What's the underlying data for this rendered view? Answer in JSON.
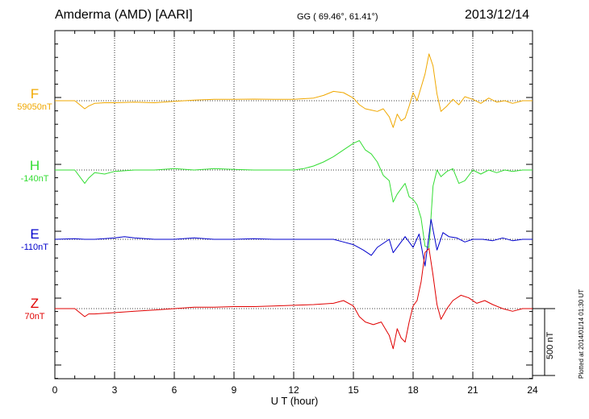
{
  "header": {
    "title": "Amderma (AMD)  [AARI]",
    "coords": "GG ( 69.46°,  61.41°)",
    "date": "2013/12/14"
  },
  "footer": {
    "plotted": "Plotted at 2014/01/14 01:30 UT"
  },
  "chart_data": {
    "type": "line",
    "title": "Amderma (AMD)  [AARI]",
    "xlabel": "U T (hour)",
    "ylabel": "",
    "xlim": [
      0,
      24
    ],
    "x_ticks": [
      0,
      3,
      6,
      9,
      12,
      15,
      18,
      21,
      24
    ],
    "grid": true,
    "scale_bar": {
      "label": "500 nT",
      "value_nT": 500
    },
    "series": [
      {
        "name": "F",
        "baseline_label": "59050nT",
        "baseline_nT": 59050,
        "color": "#f0a800",
        "x": [
          0,
          1,
          1.5,
          1.7,
          2,
          2.5,
          3,
          4,
          5,
          6,
          7,
          8,
          9,
          10,
          11,
          12,
          12.5,
          13,
          13.5,
          14,
          14.5,
          15,
          15.3,
          15.6,
          15.9,
          16.2,
          16.5,
          16.8,
          17.0,
          17.2,
          17.4,
          17.6,
          17.8,
          18.0,
          18.2,
          18.4,
          18.6,
          18.8,
          19.0,
          19.2,
          19.4,
          19.7,
          20.0,
          20.3,
          20.6,
          21.0,
          21.4,
          21.8,
          22.2,
          22.6,
          23.0,
          23.5,
          24
        ],
        "y": [
          0,
          0,
          -60,
          -40,
          -20,
          -15,
          -15,
          -10,
          -15,
          -5,
          5,
          10,
          10,
          12,
          10,
          10,
          15,
          20,
          40,
          70,
          60,
          20,
          -30,
          -60,
          -70,
          -80,
          -60,
          -120,
          -200,
          -100,
          -150,
          -130,
          -40,
          60,
          0,
          100,
          200,
          350,
          260,
          50,
          -80,
          -40,
          10,
          -30,
          30,
          10,
          -20,
          20,
          -10,
          0,
          -20,
          0,
          0
        ]
      },
      {
        "name": "H",
        "baseline_label": "-140nT",
        "baseline_nT": -140,
        "color": "#33dd33",
        "x": [
          0,
          1,
          1.5,
          1.7,
          2,
          2.5,
          3,
          4,
          5,
          6,
          7,
          8,
          9,
          10,
          11,
          12,
          12.5,
          13,
          13.5,
          14,
          14.5,
          15,
          15.3,
          15.6,
          15.9,
          16.2,
          16.5,
          16.8,
          17.0,
          17.2,
          17.4,
          17.6,
          17.8,
          18.0,
          18.2,
          18.4,
          18.6,
          18.8,
          19.0,
          19.2,
          19.4,
          19.7,
          20.0,
          20.3,
          20.6,
          21.0,
          21.4,
          21.8,
          22.2,
          22.6,
          23.0,
          23.5,
          24
        ],
        "y": [
          0,
          0,
          -100,
          -60,
          -20,
          -30,
          -10,
          0,
          0,
          10,
          0,
          10,
          5,
          0,
          0,
          0,
          10,
          30,
          60,
          100,
          150,
          200,
          220,
          150,
          120,
          60,
          -40,
          -80,
          -240,
          -180,
          -140,
          -100,
          -200,
          -220,
          -260,
          -360,
          -570,
          -580,
          -120,
          0,
          -50,
          -10,
          10,
          -100,
          -80,
          0,
          -30,
          0,
          -20,
          0,
          -10,
          0,
          0
        ]
      },
      {
        "name": "E",
        "baseline_label": "-110nT",
        "baseline_nT": -110,
        "color": "#0000cc",
        "x": [
          0,
          1,
          1.5,
          2,
          3,
          3.5,
          4,
          5,
          6,
          7,
          8,
          9,
          10,
          11,
          12,
          13,
          14,
          14.5,
          15,
          15.5,
          15.9,
          16.2,
          16.5,
          16.8,
          17.0,
          17.3,
          17.6,
          18.0,
          18.3,
          18.6,
          18.9,
          19.2,
          19.5,
          19.8,
          20.2,
          20.6,
          21.0,
          21.5,
          22.0,
          22.5,
          23.0,
          23.5,
          24
        ],
        "y": [
          0,
          5,
          0,
          0,
          10,
          20,
          10,
          0,
          0,
          10,
          0,
          0,
          5,
          0,
          0,
          0,
          0,
          -20,
          -40,
          -80,
          -120,
          -60,
          -30,
          0,
          -100,
          -40,
          20,
          -60,
          40,
          -200,
          150,
          -80,
          50,
          20,
          10,
          -20,
          0,
          0,
          -10,
          10,
          -10,
          0,
          0
        ]
      },
      {
        "name": "Z",
        "baseline_label": "70nT",
        "baseline_nT": 70,
        "color": "#e00000",
        "x": [
          0,
          1,
          1.5,
          1.7,
          2,
          3,
          4,
          5,
          6,
          7,
          8,
          9,
          10,
          11,
          12,
          13,
          14,
          14.5,
          15,
          15.3,
          15.6,
          16.0,
          16.4,
          16.8,
          17.0,
          17.2,
          17.4,
          17.6,
          17.8,
          18.0,
          18.2,
          18.4,
          18.6,
          18.8,
          19.0,
          19.2,
          19.4,
          19.7,
          20.0,
          20.4,
          20.8,
          21.2,
          21.6,
          22.0,
          22.5,
          23.0,
          23.5,
          24
        ],
        "y": [
          0,
          0,
          -60,
          -40,
          -40,
          -30,
          -20,
          -10,
          0,
          10,
          10,
          15,
          15,
          20,
          25,
          30,
          40,
          60,
          20,
          -60,
          -100,
          -120,
          -100,
          -200,
          -300,
          -150,
          -220,
          -250,
          -100,
          20,
          60,
          200,
          420,
          450,
          250,
          30,
          -80,
          0,
          60,
          100,
          80,
          40,
          60,
          30,
          0,
          -20,
          0,
          0
        ]
      }
    ]
  }
}
